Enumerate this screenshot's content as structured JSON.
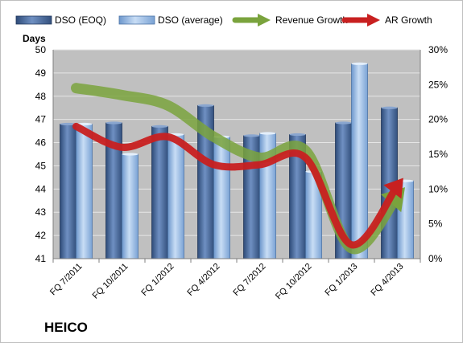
{
  "chart_data": {
    "type": "bar",
    "company": "HEICO",
    "ylabel": "Days",
    "ylim": [
      41,
      50
    ],
    "y2lim": [
      0,
      30
    ],
    "y_ticks": [
      "41",
      "42",
      "43",
      "44",
      "45",
      "46",
      "47",
      "48",
      "49",
      "50"
    ],
    "y2_ticks": [
      "0%",
      "5%",
      "10%",
      "15%",
      "20%",
      "25%",
      "30%"
    ],
    "categories": [
      "FQ 7/2011",
      "FQ 10/2011",
      "FQ 1/2012",
      "FQ 4/2012",
      "FQ 7/2012",
      "FQ 10/2012",
      "FQ 1/2013",
      "FQ 4/2013"
    ],
    "grid": true,
    "legend_position": "top",
    "series": [
      {
        "name": "DSO (EOQ)",
        "kind": "bar",
        "axis": "left",
        "color": "#4f6e9c",
        "values": [
          46.8,
          46.85,
          46.7,
          47.6,
          46.3,
          46.35,
          46.85,
          47.5
        ]
      },
      {
        "name": "DSO (average)",
        "kind": "bar",
        "axis": "left",
        "color": "#8eb4e3",
        "values": [
          46.8,
          45.5,
          46.35,
          46.25,
          46.4,
          44.75,
          49.4,
          44.35
        ]
      },
      {
        "name": "Revenue Growth",
        "kind": "line",
        "axis": "right",
        "color": "#7aa33d",
        "values": [
          24.5,
          23.5,
          22,
          17.5,
          14.5,
          15.5,
          1.5,
          9
        ]
      },
      {
        "name": "AR Growth",
        "kind": "line",
        "axis": "right",
        "color": "#c82020",
        "values": [
          19,
          16,
          17.5,
          13.5,
          13.5,
          14.5,
          2,
          10.5
        ]
      }
    ]
  }
}
